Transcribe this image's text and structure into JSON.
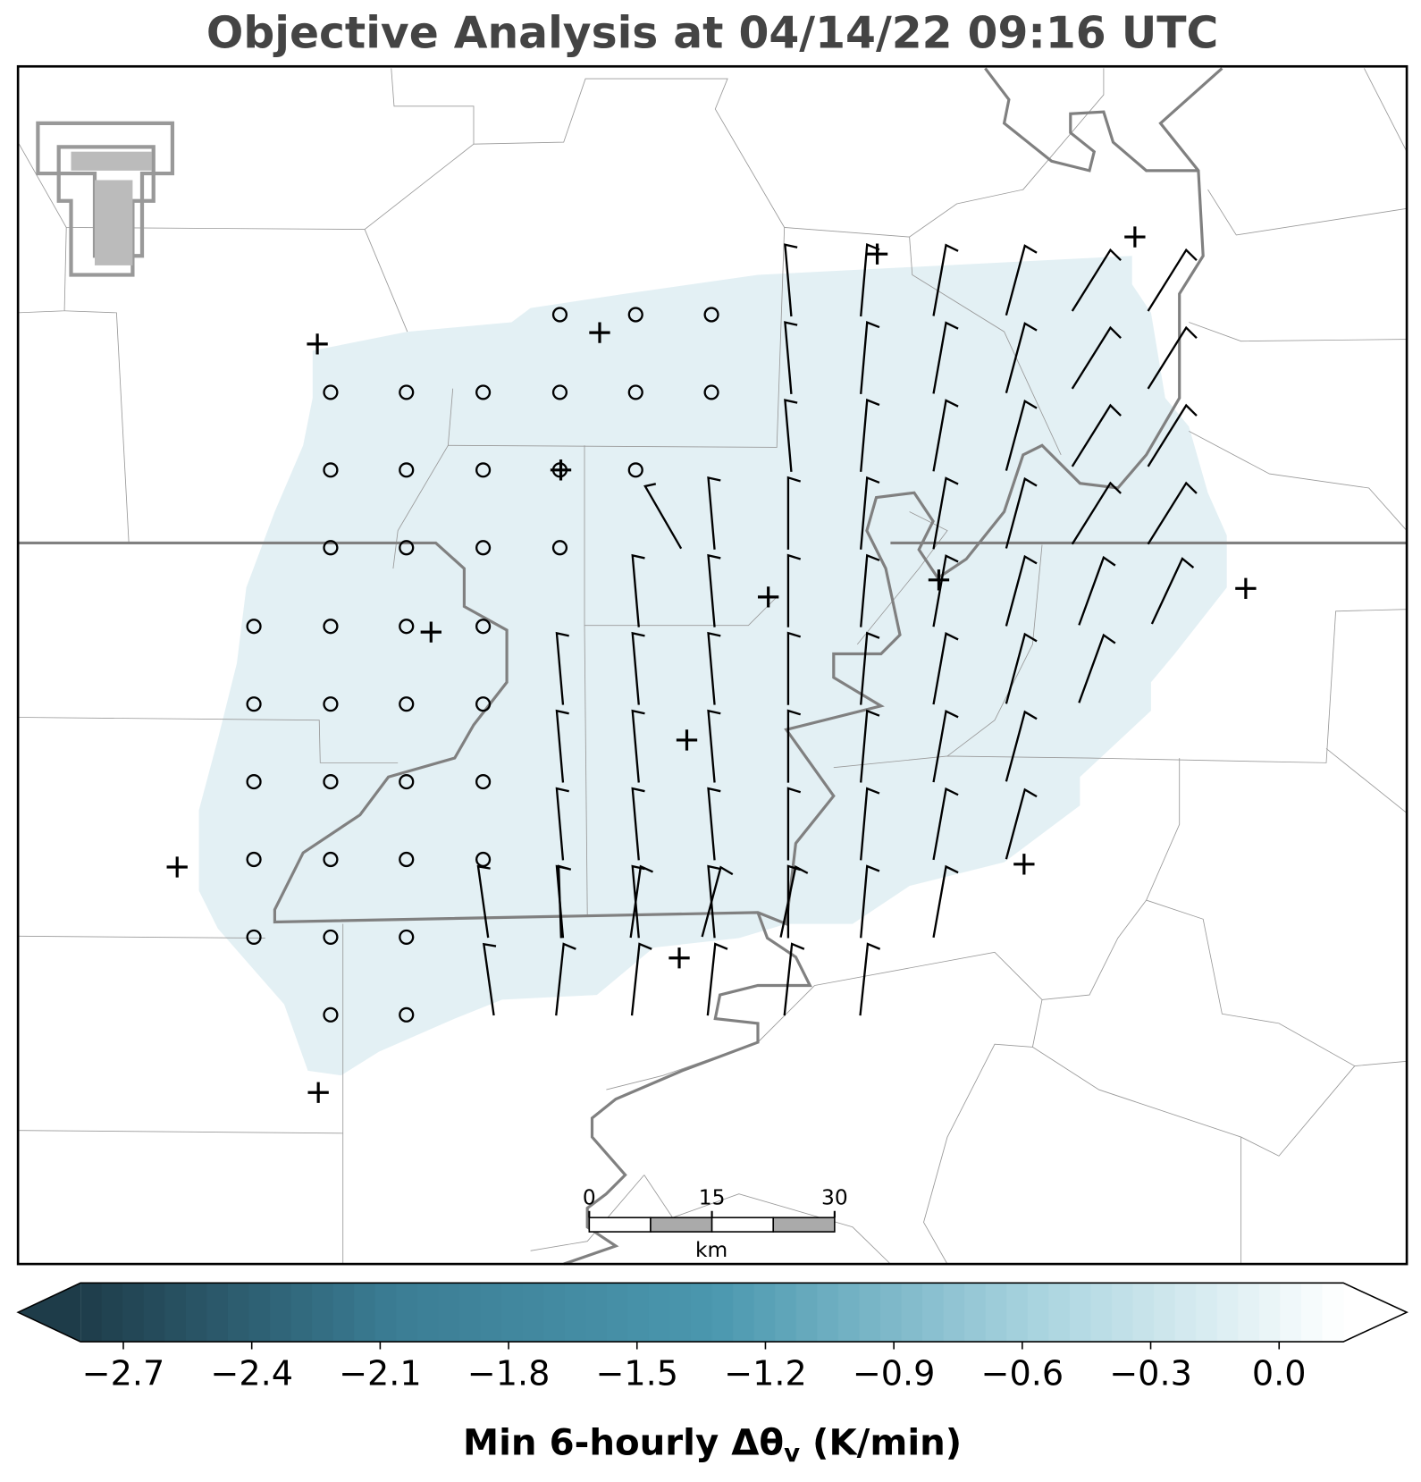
{
  "title": "Objective Analysis at 04/14/22 09:16 UTC",
  "colorbar": {
    "label_parts": [
      "Min 6-hourly Δθ",
      "v",
      " (K/min)"
    ],
    "lim": [
      -2.8,
      0.15
    ],
    "ticks": [
      {
        "value": -2.7,
        "label": "−2.7"
      },
      {
        "value": -2.4,
        "label": "−2.4"
      },
      {
        "value": -2.1,
        "label": "−2.1"
      },
      {
        "value": -1.8,
        "label": "−1.8"
      },
      {
        "value": -1.5,
        "label": "−1.5"
      },
      {
        "value": -1.2,
        "label": "−1.2"
      },
      {
        "value": -0.9,
        "label": "−0.9"
      },
      {
        "value": -0.6,
        "label": "−0.6"
      },
      {
        "value": -0.3,
        "label": "−0.3"
      },
      {
        "value": 0.0,
        "label": "0.0"
      }
    ],
    "colors": [
      "#1e3c49",
      "#3b7d94",
      "#4a97ae",
      "#a6d2de",
      "#ffffff"
    ]
  },
  "scale_bar": {
    "lim": [
      0,
      30
    ],
    "ticks": [
      0,
      15,
      30
    ],
    "unit": "km"
  }
}
